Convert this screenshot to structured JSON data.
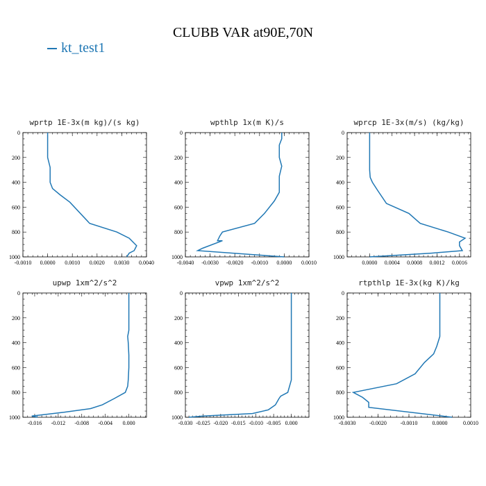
{
  "title": "CLUBB VAR at90E,70N",
  "legend": {
    "label": "kt_test1",
    "color": "#1f77b4"
  },
  "chart_data": [
    {
      "type": "line",
      "title": "wprtp  1E-3x(m kg)/(s kg)",
      "xlim": [
        -0.001,
        0.004
      ],
      "ylim": [
        0,
        1000
      ],
      "xticks": [
        -0.001,
        0.0,
        0.001,
        0.002,
        0.003,
        0.004
      ],
      "xticklabels": [
        "-0.0010",
        "0.0000",
        "0.0010",
        "0.0020",
        "0.0030",
        "0.0040"
      ],
      "yticks": [
        0,
        200,
        400,
        600,
        800,
        1000
      ],
      "yticklabels": [
        "0",
        "200",
        "400",
        "600",
        "800",
        "1000"
      ],
      "series": [
        {
          "name": "kt_test1",
          "x": [
            0.0,
            0.0,
            0.0,
            0.0001,
            0.0001,
            0.0001,
            0.0002,
            0.0005,
            0.0009,
            0.0017,
            0.0028,
            0.0033,
            0.0036,
            0.0035,
            0.0033,
            0.0032
          ],
          "y": [
            0,
            100,
            200,
            280,
            350,
            400,
            450,
            500,
            560,
            730,
            800,
            850,
            910,
            950,
            970,
            1000
          ]
        }
      ]
    },
    {
      "type": "line",
      "title": "wpthlp  1x(m K)/s",
      "xlim": [
        -0.004,
        0.001
      ],
      "ylim": [
        0,
        1000
      ],
      "xticks": [
        -0.004,
        -0.003,
        -0.002,
        -0.001,
        0.0,
        0.001
      ],
      "xticklabels": [
        "-0.0040",
        "-0.0030",
        "-0.0020",
        "-0.0010",
        "0.0000",
        "0.0010"
      ],
      "yticks": [
        0,
        200,
        400,
        600,
        800,
        1000
      ],
      "yticklabels": [
        "0",
        "200",
        "400",
        "600",
        "800",
        "1000"
      ],
      "series": [
        {
          "name": "kt_test1",
          "x": [
            -0.0001,
            -0.0001,
            -0.0002,
            -0.0002,
            -0.0001,
            -0.0002,
            -0.0002,
            -0.0002,
            -0.0004,
            -0.0008,
            -0.0012,
            -0.0025,
            -0.0026,
            -0.0027,
            -0.0025,
            -0.0033,
            -0.0035,
            0.0
          ],
          "y": [
            0,
            50,
            100,
            200,
            270,
            350,
            400,
            480,
            550,
            650,
            730,
            800,
            830,
            870,
            870,
            930,
            950,
            1000
          ]
        }
      ]
    },
    {
      "type": "line",
      "title": "wprcp  1E-3x(m/s) (kg/kg)",
      "xlim": [
        -0.0004,
        0.0018
      ],
      "ylim": [
        0,
        1000
      ],
      "xticks": [
        0.0,
        0.0004,
        0.0008,
        0.0012,
        0.0016
      ],
      "xticklabels": [
        "0.0000",
        "0.0004",
        "0.0008",
        "0.0012",
        "0.0016"
      ],
      "yticks": [
        0,
        200,
        400,
        600,
        800,
        1000
      ],
      "yticklabels": [
        "0",
        "200",
        "400",
        "600",
        "800",
        "1000"
      ],
      "series": [
        {
          "name": "kt_test1",
          "x": [
            0.0,
            0.0,
            0.0,
            0.0,
            1e-05,
            5e-05,
            0.00015,
            0.0003,
            0.0007,
            0.0009,
            0.0014,
            0.0017,
            0.0016,
            0.0016,
            0.00165,
            0.0011,
            0.0
          ],
          "y": [
            0,
            100,
            200,
            300,
            360,
            400,
            470,
            570,
            650,
            730,
            800,
            850,
            880,
            910,
            950,
            970,
            1000
          ]
        }
      ]
    },
    {
      "type": "line",
      "title": "upwp  1xm^2/s^2",
      "xlim": [
        -0.018,
        0.003
      ],
      "ylim": [
        0,
        1000
      ],
      "xticks": [
        -0.016,
        -0.012,
        -0.008,
        -0.004,
        0.0
      ],
      "xticklabels": [
        "-0.016",
        "-0.012",
        "-0.008",
        "-0.004",
        "0.000"
      ],
      "yticks": [
        0,
        200,
        400,
        600,
        800,
        1000
      ],
      "yticklabels": [
        "0",
        "200",
        "400",
        "600",
        "800",
        "1000"
      ],
      "series": [
        {
          "name": "kt_test1",
          "x": [
            0.0,
            0.0,
            0.0,
            0.0,
            -0.0002,
            -0.0001,
            0.0,
            0.0,
            -0.0001,
            -0.0002,
            -0.0006,
            -0.0025,
            -0.0045,
            -0.0065,
            -0.011,
            -0.0165,
            -0.0155
          ],
          "y": [
            0,
            100,
            200,
            300,
            350,
            400,
            500,
            600,
            700,
            750,
            800,
            850,
            900,
            930,
            960,
            990,
            1000
          ]
        }
      ]
    },
    {
      "type": "line",
      "title": "vpwp  1xm^2/s^2",
      "xlim": [
        -0.03,
        0.005
      ],
      "ylim": [
        0,
        1000
      ],
      "xticks": [
        -0.03,
        -0.025,
        -0.02,
        -0.015,
        -0.01,
        -0.005,
        0.0
      ],
      "xticklabels": [
        "-0.030",
        "-0.025",
        "-0.020",
        "-0.015",
        "-0.010",
        "-0.005",
        "0.000"
      ],
      "yticks": [
        0,
        200,
        400,
        600,
        800,
        1000
      ],
      "yticklabels": [
        "0",
        "200",
        "400",
        "600",
        "800",
        "1000"
      ],
      "series": [
        {
          "name": "kt_test1",
          "x": [
            0.0,
            0.0,
            0.0,
            0.0,
            0.0,
            0.0,
            0.0,
            0.0,
            -0.001,
            -0.003,
            -0.0035,
            -0.0045,
            -0.0065,
            -0.011,
            -0.025,
            -0.029
          ],
          "y": [
            0,
            100,
            200,
            300,
            400,
            500,
            600,
            700,
            800,
            830,
            850,
            900,
            940,
            970,
            990,
            1000
          ]
        }
      ]
    },
    {
      "type": "line",
      "title": "rtpthlp  1E-3x(kg K)/kg",
      "xlim": [
        -0.003,
        0.001
      ],
      "ylim": [
        0,
        1000
      ],
      "xticks": [
        -0.003,
        -0.002,
        -0.001,
        0.0,
        0.001
      ],
      "xticklabels": [
        "-0.0030",
        "-0.0020",
        "-0.0010",
        "0.0000",
        "0.0010"
      ],
      "yticks": [
        0,
        200,
        400,
        600,
        800,
        1000
      ],
      "yticklabels": [
        "0",
        "200",
        "400",
        "600",
        "800",
        "1000"
      ],
      "series": [
        {
          "name": "kt_test1",
          "x": [
            0.0,
            0.0,
            0.0,
            0.0,
            -0.0001,
            -0.0002,
            -0.0005,
            -0.0008,
            -0.0014,
            -0.0028,
            -0.0025,
            -0.0023,
            -0.0023,
            0.0004
          ],
          "y": [
            0,
            100,
            200,
            350,
            430,
            490,
            560,
            650,
            730,
            800,
            840,
            880,
            920,
            1000
          ]
        }
      ]
    }
  ]
}
